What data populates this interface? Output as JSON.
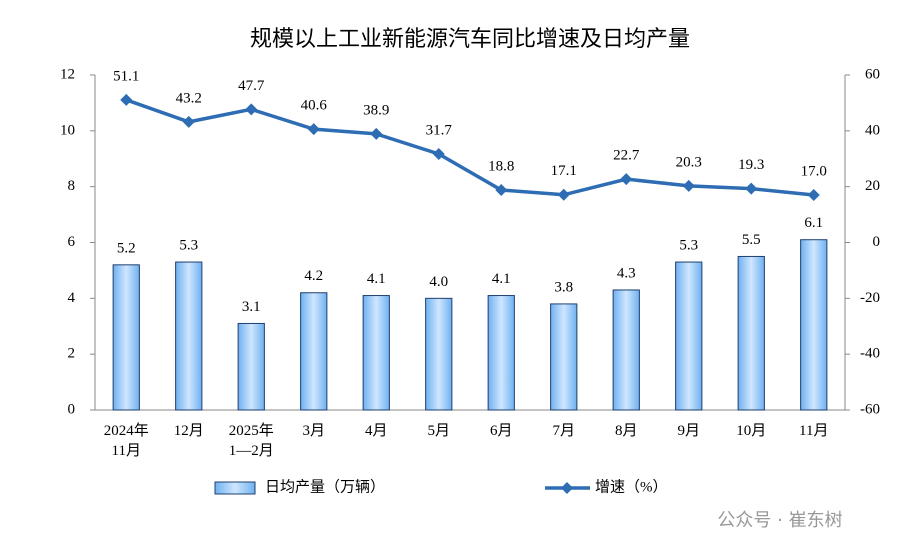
{
  "chart_data": {
    "type": "bar-line",
    "title": "规模以上工业新能源汽车同比增速及日均产量",
    "categories": [
      "2024年\n11月",
      "12月",
      "2025年\n1—2月",
      "3月",
      "4月",
      "5月",
      "6月",
      "7月",
      "8月",
      "9月",
      "10月",
      "11月"
    ],
    "series": [
      {
        "name": "日均产量（万辆）",
        "type": "bar",
        "color": "#99ccff",
        "values": [
          5.2,
          5.3,
          3.1,
          4.2,
          4.1,
          4.0,
          4.1,
          3.8,
          4.3,
          5.3,
          5.5,
          6.1
        ],
        "value_labels": [
          "5.2",
          "5.3",
          "3.1",
          "4.2",
          "4.1",
          "4.0",
          "4.1",
          "3.8",
          "4.3",
          "5.3",
          "5.5",
          "6.1"
        ]
      },
      {
        "name": "增速（%）",
        "type": "line",
        "axis": "y2",
        "color": "#2e6db4",
        "values": [
          51.1,
          43.2,
          47.7,
          40.6,
          38.9,
          31.7,
          18.8,
          17.1,
          22.7,
          20.3,
          19.3,
          17.0
        ],
        "value_labels": [
          "51.1",
          "43.2",
          "47.7",
          "40.6",
          "38.9",
          "31.7",
          "18.8",
          "17.1",
          "22.7",
          "20.3",
          "19.3",
          "17.0"
        ]
      }
    ],
    "ylim": [
      0,
      12
    ],
    "yticks": [
      0,
      2,
      4,
      6,
      8,
      10,
      12
    ],
    "y2lim": [
      -60,
      60
    ],
    "y2ticks": [
      -60,
      -40,
      -20,
      0,
      20,
      40,
      60
    ],
    "watermark": "公众号 · 崔东树"
  }
}
